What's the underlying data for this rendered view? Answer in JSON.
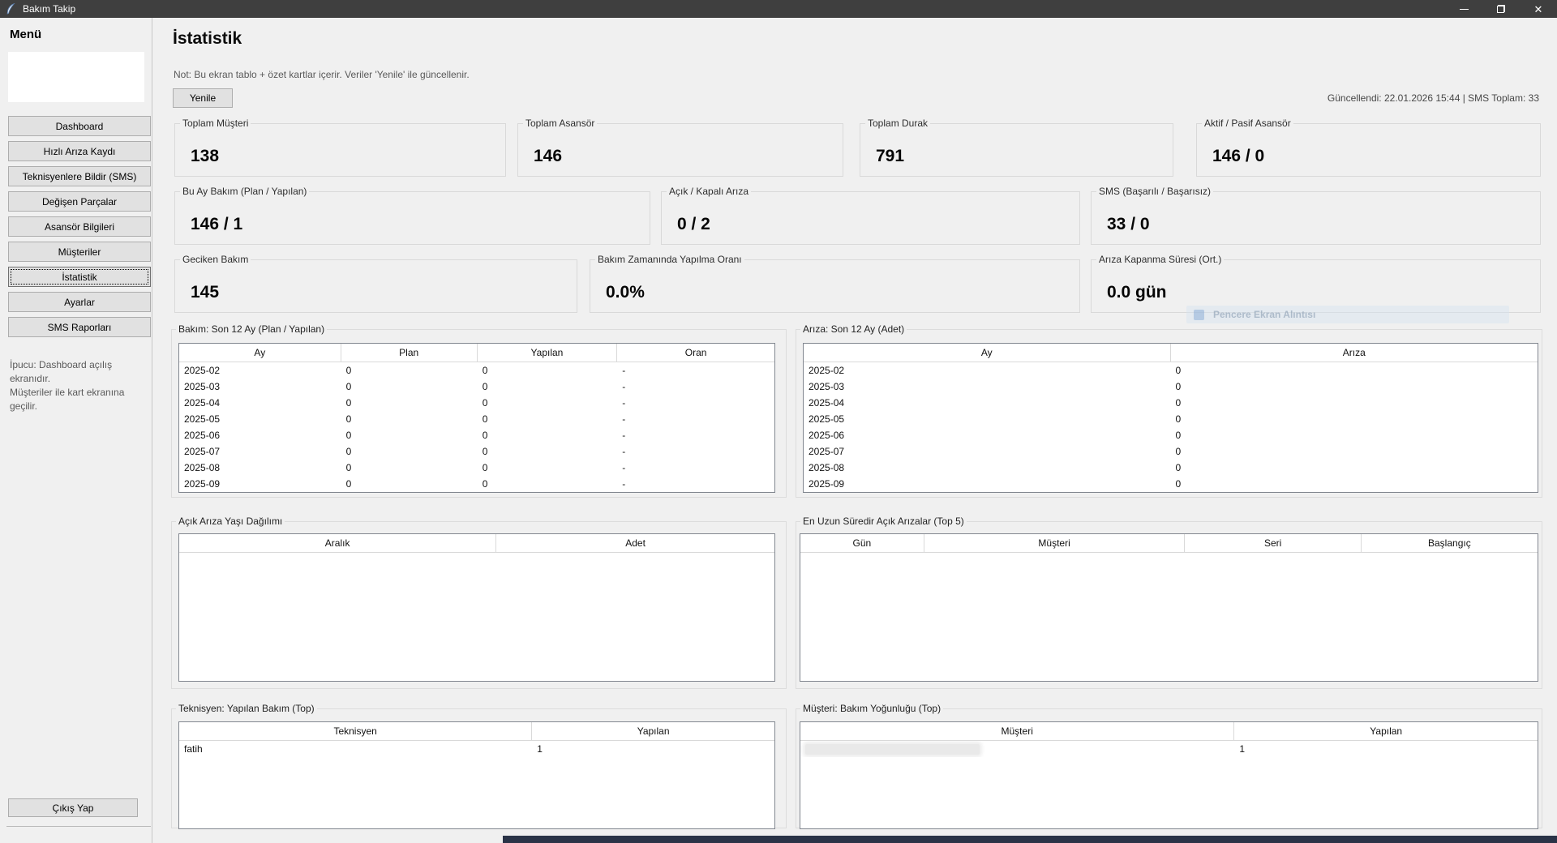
{
  "window": {
    "title": "Bakım Takip",
    "controls": [
      "minimize",
      "restore",
      "close"
    ]
  },
  "colors": {
    "titlebar": "#3f3f3f",
    "background": "#f0f0f0",
    "button_face": "#e1e1e1",
    "button_border": "#adadad",
    "taskbar_strip": "#2a3347"
  },
  "sidebar": {
    "heading": "Menü",
    "items": [
      {
        "label": "Dashboard"
      },
      {
        "label": "Hızlı Arıza Kaydı"
      },
      {
        "label": "Teknisyenlere Bildir (SMS)"
      },
      {
        "label": "Değişen Parçalar"
      },
      {
        "label": "Asansör Bilgileri"
      },
      {
        "label": "Müşteriler"
      },
      {
        "label": "İstatistik"
      },
      {
        "label": "Ayarlar"
      },
      {
        "label": "SMS Raporları"
      }
    ],
    "active_item": "İstatistik",
    "tip_line1": "İpucu: Dashboard açılış ekranıdır.",
    "tip_line2": "Müşteriler ile kart ekranına geçilir.",
    "logout_label": "Çıkış Yap"
  },
  "header": {
    "title": "İstatistik",
    "note": "Not: Bu ekran tablo + özet kartlar içerir. Veriler 'Yenile' ile güncellenir.",
    "refresh_label": "Yenile",
    "status": "Güncellendi: 22.01.2026 15:44 | SMS Toplam: 33"
  },
  "cards": [
    {
      "label": "Toplam Müşteri",
      "value": "138"
    },
    {
      "label": "Toplam Asansör",
      "value": "146"
    },
    {
      "label": "Toplam Durak",
      "value": "791"
    },
    {
      "label": "Aktif / Pasif Asansör",
      "value": "146 / 0"
    },
    {
      "label": "Bu Ay Bakım (Plan / Yapılan)",
      "value": "146 / 1"
    },
    {
      "label": "Açık / Kapalı Arıza",
      "value": "0 / 2"
    },
    {
      "label": "SMS (Başarılı / Başarısız)",
      "value": "33 / 0"
    },
    {
      "label": "Geciken Bakım",
      "value": "145"
    },
    {
      "label": "Bakım Zamanında Yapılma Oranı",
      "value": "0.0%"
    },
    {
      "label": "Arıza Kapanma Süresi (Ort.)",
      "value": "0.0 gün"
    }
  ],
  "tables": {
    "bakim12": {
      "title": "Bakım: Son 12 Ay (Plan / Yapılan)",
      "columns": [
        "Ay",
        "Plan",
        "Yapılan",
        "Oran"
      ],
      "rows": [
        [
          "2025-02",
          "0",
          "0",
          "-"
        ],
        [
          "2025-03",
          "0",
          "0",
          "-"
        ],
        [
          "2025-04",
          "0",
          "0",
          "-"
        ],
        [
          "2025-05",
          "0",
          "0",
          "-"
        ],
        [
          "2025-06",
          "0",
          "0",
          "-"
        ],
        [
          "2025-07",
          "0",
          "0",
          "-"
        ],
        [
          "2025-08",
          "0",
          "0",
          "-"
        ],
        [
          "2025-09",
          "0",
          "0",
          "-"
        ]
      ]
    },
    "ariza12": {
      "title": "Arıza: Son 12 Ay (Adet)",
      "columns": [
        "Ay",
        "Arıza"
      ],
      "rows": [
        [
          "2025-02",
          "0"
        ],
        [
          "2025-03",
          "0"
        ],
        [
          "2025-04",
          "0"
        ],
        [
          "2025-05",
          "0"
        ],
        [
          "2025-06",
          "0"
        ],
        [
          "2025-07",
          "0"
        ],
        [
          "2025-08",
          "0"
        ],
        [
          "2025-09",
          "0"
        ]
      ]
    },
    "acik_yas": {
      "title": "Açık Arıza Yaşı Dağılımı",
      "columns": [
        "Aralık",
        "Adet"
      ],
      "rows": []
    },
    "uzun_ariza": {
      "title": "En Uzun Süredir Açık Arızalar (Top 5)",
      "columns": [
        "Gün",
        "Müşteri",
        "Seri",
        "Başlangıç"
      ],
      "rows": []
    },
    "teknisyen": {
      "title": "Teknisyen: Yapılan Bakım (Top)",
      "columns": [
        "Teknisyen",
        "Yapılan"
      ],
      "rows": [
        [
          "fatih",
          "1"
        ]
      ]
    },
    "musteri": {
      "title": "Müşteri: Bakım Yoğunluğu (Top)",
      "columns": [
        "Müşteri",
        "Yapılan"
      ],
      "rows": [
        [
          "",
          "1"
        ]
      ],
      "redact_first_cell": true
    }
  },
  "ghost_overlay": {
    "text": "Pencere Ekran Alıntısı"
  }
}
